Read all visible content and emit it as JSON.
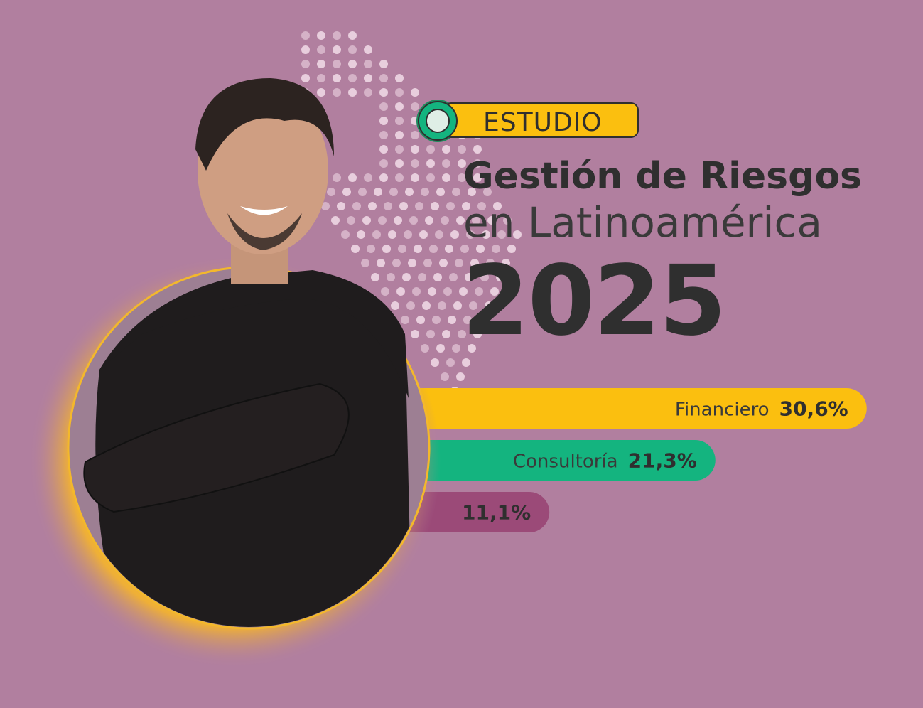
{
  "badge": "ESTUDIO",
  "title": {
    "line1": "Gestión de Riesgos",
    "line2": "en Latinoamérica",
    "year": "2025"
  },
  "bars": {
    "categories": [
      "Financiero",
      "Consultoría",
      null
    ],
    "values": [
      30.6,
      21.3,
      11.1
    ],
    "value_labels": [
      "30,6%",
      "21,3%",
      "11,1%"
    ],
    "colors": [
      "#fbbf0f",
      "#14b47f",
      "#9b4a78"
    ]
  }
}
